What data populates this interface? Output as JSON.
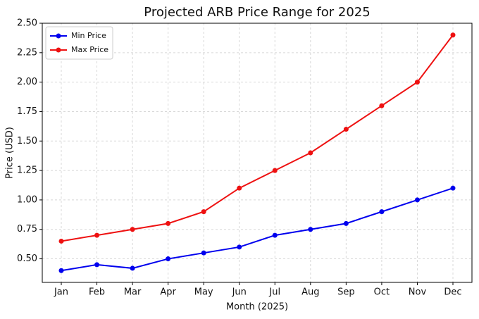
{
  "chart_data": {
    "type": "line",
    "title": "Projected ARB Price Range for 2025",
    "x_label": "Month (2025)",
    "y_label": "Price (USD)",
    "categories": [
      "Jan",
      "Feb",
      "Mar",
      "Apr",
      "May",
      "Jun",
      "Jul",
      "Aug",
      "Sep",
      "Oct",
      "Nov",
      "Dec"
    ],
    "series": [
      {
        "name": "Min Price",
        "color": "#0000ee",
        "values": [
          0.4,
          0.45,
          0.42,
          0.5,
          0.55,
          0.6,
          0.7,
          0.75,
          0.8,
          0.9,
          1.0,
          1.1
        ]
      },
      {
        "name": "Max Price",
        "color": "#ee1111",
        "values": [
          0.65,
          0.7,
          0.75,
          0.8,
          0.9,
          1.1,
          1.25,
          1.4,
          1.6,
          1.8,
          2.0,
          2.4
        ]
      }
    ],
    "ylim": [
      0.3,
      2.5
    ],
    "yticks": [
      {
        "value": 0.5,
        "label": "0.50"
      },
      {
        "value": 0.75,
        "label": "0.75"
      },
      {
        "value": 1,
        "label": "1.00"
      },
      {
        "value": 1.25,
        "label": "1.25"
      },
      {
        "value": 1.5,
        "label": "1.50"
      },
      {
        "value": 1.75,
        "label": "1.75"
      },
      {
        "value": 2,
        "label": "2.00"
      },
      {
        "value": 2.25,
        "label": "2.25"
      },
      {
        "value": 2.5,
        "label": "2.50"
      }
    ],
    "grid": true,
    "legend": "upper-left"
  }
}
